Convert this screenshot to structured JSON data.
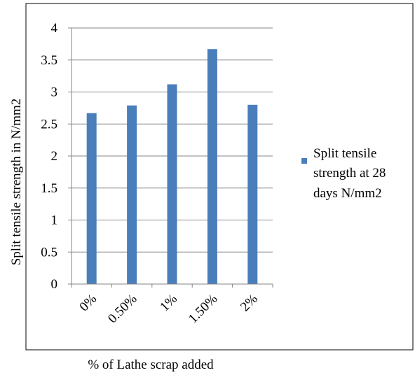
{
  "chart_data": {
    "type": "bar",
    "categories": [
      "0%",
      "0.50%",
      "1%",
      "1.50%",
      "2%"
    ],
    "series": [
      {
        "name": "Split tensile strength at 28 days N/mm2",
        "values": [
          2.67,
          2.79,
          3.12,
          3.67,
          2.8
        ],
        "color": "#4a7ebb"
      }
    ],
    "xlabel": "% of Lathe scrap added",
    "ylabel": "Split tensile strength in N/mm2",
    "ylim": [
      0,
      4
    ],
    "yticks": [
      "0",
      "0.5",
      "1",
      "1.5",
      "2",
      "2.5",
      "3",
      "3.5",
      "4"
    ],
    "grid": true,
    "legend_position": "right",
    "legend_lines": [
      "Split tensile",
      "strength at 28",
      "days N/mm2"
    ]
  }
}
